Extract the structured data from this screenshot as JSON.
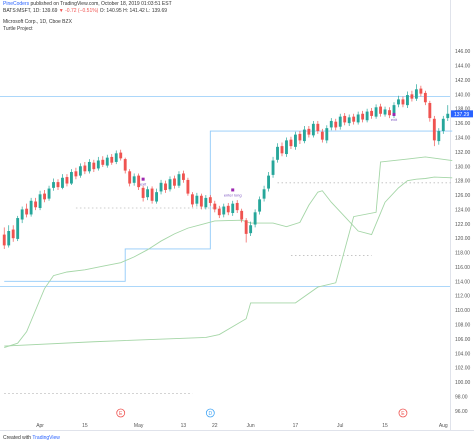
{
  "header": {
    "publisher": "PineCoders",
    "published_text": "published on TradingView.com, October 18, 2019 01:03:51 EST",
    "ohlc_line": "BATS:MSFT, 1D",
    "ohlc_values": "139.69",
    "change": "▼ -0.72 (−0.51%)",
    "ohlc_rest": "O: 140.95 H: 141.42 L: 139.69"
  },
  "legend": {
    "symbol": "Microsoft Corp., 1D, Cboe BZX",
    "study": "Turtle Project"
  },
  "footer": {
    "created": "Created with",
    "brand": "TradingView"
  },
  "colors": {
    "up": "#26a69a",
    "down": "#ef5350",
    "upper_channel": "#90caf9",
    "lower_channel": "#a5d6a7",
    "guide": "#bdbdbd",
    "marker": "#9c27b0",
    "last_price_bg": "#2962ff"
  },
  "chart_data": {
    "type": "candlestick",
    "ylim": [
      95,
      147
    ],
    "y_ticks": [
      96,
      98,
      100,
      102,
      104,
      106,
      108,
      110,
      112,
      114,
      116,
      118,
      120,
      122,
      124,
      126,
      128,
      130,
      132,
      134,
      136,
      138,
      140,
      142,
      144,
      146
    ],
    "last_price": 137.29,
    "x_ticks": [
      {
        "label": "Apr",
        "i": 8
      },
      {
        "label": "15",
        "i": 18
      },
      {
        "label": "May",
        "i": 30
      },
      {
        "label": "13",
        "i": 40
      },
      {
        "label": "22",
        "i": 47
      },
      {
        "label": "Jun",
        "i": 55
      },
      {
        "label": "17",
        "i": 65
      },
      {
        "label": "Jul",
        "i": 75
      },
      {
        "label": "15",
        "i": 85
      },
      {
        "label": "Aug",
        "i": 98
      }
    ],
    "event_markers": [
      {
        "label": "E",
        "i": 26,
        "color": "#ef5350"
      },
      {
        "label": "D",
        "i": 46,
        "color": "#42a5f5"
      },
      {
        "label": "E",
        "i": 89,
        "color": "#ef5350"
      }
    ],
    "horizontal_lines": [
      {
        "y": 139.7,
        "color": "#90caf9"
      },
      {
        "y": 113.3,
        "color": "#90caf9"
      }
    ],
    "annotations": [
      {
        "text": "exit",
        "i": 31,
        "y": 128
      },
      {
        "text": "enter long",
        "i": 51,
        "y": 126.5
      },
      {
        "text": "exit",
        "i": 87,
        "y": 137
      }
    ],
    "candles": [
      [
        120.5,
        119.0,
        121.5,
        118.5
      ],
      [
        119.0,
        121.0,
        121.8,
        118.7
      ],
      [
        121.2,
        120.0,
        121.8,
        119.5
      ],
      [
        119.9,
        122.8,
        123.1,
        119.6
      ],
      [
        122.6,
        124.0,
        124.4,
        122.1
      ],
      [
        124.1,
        123.3,
        124.8,
        122.9
      ],
      [
        123.3,
        125.2,
        125.6,
        123.0
      ],
      [
        125.1,
        124.3,
        125.6,
        123.9
      ],
      [
        124.2,
        126.1,
        126.6,
        123.9
      ],
      [
        126.2,
        125.4,
        126.7,
        125.0
      ],
      [
        125.5,
        126.9,
        127.3,
        125.2
      ],
      [
        127.0,
        127.8,
        128.3,
        126.6
      ],
      [
        127.8,
        127.1,
        128.2,
        126.7
      ],
      [
        127.0,
        128.4,
        128.9,
        126.8
      ],
      [
        128.5,
        127.6,
        128.9,
        127.2
      ],
      [
        127.6,
        129.2,
        129.6,
        127.4
      ],
      [
        129.3,
        128.6,
        129.8,
        128.2
      ],
      [
        128.7,
        130.0,
        130.4,
        128.4
      ],
      [
        130.1,
        129.3,
        130.6,
        128.9
      ],
      [
        129.3,
        130.6,
        131.0,
        129.0
      ],
      [
        130.5,
        129.6,
        130.9,
        129.2
      ],
      [
        129.7,
        130.8,
        131.3,
        129.4
      ],
      [
        130.9,
        130.2,
        131.4,
        129.9
      ],
      [
        130.1,
        131.2,
        131.6,
        129.8
      ],
      [
        131.3,
        130.5,
        131.7,
        130.2
      ],
      [
        130.6,
        131.8,
        132.2,
        130.3
      ],
      [
        131.9,
        131.1,
        132.3,
        130.8
      ],
      [
        131.0,
        129.4,
        131.2,
        129.0
      ],
      [
        129.3,
        127.6,
        129.6,
        127.2
      ],
      [
        127.7,
        128.6,
        129.0,
        127.3
      ],
      [
        128.7,
        127.1,
        129.0,
        126.7
      ],
      [
        127.0,
        125.6,
        127.3,
        125.1
      ],
      [
        125.7,
        126.8,
        127.2,
        125.3
      ],
      [
        126.9,
        125.2,
        127.2,
        124.8
      ],
      [
        125.1,
        126.4,
        126.9,
        124.8
      ],
      [
        126.5,
        127.7,
        128.1,
        126.1
      ],
      [
        127.6,
        126.7,
        128.0,
        126.3
      ],
      [
        126.8,
        128.2,
        128.6,
        126.5
      ],
      [
        128.3,
        127.3,
        128.7,
        126.9
      ],
      [
        127.3,
        128.9,
        129.3,
        127.0
      ],
      [
        129.0,
        128.1,
        129.4,
        127.7
      ],
      [
        128.1,
        126.2,
        128.4,
        125.9
      ],
      [
        126.1,
        124.7,
        126.4,
        124.3
      ],
      [
        124.8,
        125.9,
        126.3,
        124.4
      ],
      [
        125.9,
        124.4,
        126.2,
        124.0
      ],
      [
        124.3,
        125.6,
        126.0,
        124.0
      ],
      [
        125.7,
        124.9,
        126.0,
        124.5
      ],
      [
        124.8,
        124.0,
        125.2,
        123.6
      ],
      [
        124.1,
        123.2,
        124.5,
        122.8
      ],
      [
        123.3,
        124.4,
        124.8,
        122.9
      ],
      [
        124.5,
        123.6,
        124.9,
        123.2
      ],
      [
        123.5,
        124.8,
        125.2,
        123.1
      ],
      [
        124.9,
        123.9,
        125.3,
        123.5
      ],
      [
        123.8,
        122.6,
        124.1,
        122.2
      ],
      [
        122.5,
        120.6,
        122.8,
        119.4
      ],
      [
        120.7,
        121.8,
        122.3,
        120.3
      ],
      [
        121.9,
        123.6,
        124.0,
        121.5
      ],
      [
        123.7,
        125.4,
        125.8,
        123.3
      ],
      [
        125.5,
        126.8,
        127.3,
        125.1
      ],
      [
        126.9,
        128.7,
        129.2,
        126.5
      ],
      [
        128.8,
        130.8,
        131.3,
        128.4
      ],
      [
        130.9,
        132.7,
        133.2,
        130.5
      ],
      [
        132.8,
        131.8,
        133.3,
        131.4
      ],
      [
        131.7,
        133.6,
        134.0,
        131.3
      ],
      [
        133.7,
        132.8,
        134.1,
        132.4
      ],
      [
        132.7,
        134.4,
        134.8,
        132.3
      ],
      [
        134.5,
        133.6,
        134.9,
        133.1
      ],
      [
        133.5,
        135.1,
        135.6,
        133.2
      ],
      [
        135.2,
        134.4,
        135.6,
        134.0
      ],
      [
        134.3,
        135.9,
        136.3,
        134.0
      ],
      [
        135.9,
        134.9,
        136.3,
        134.5
      ],
      [
        134.8,
        133.7,
        135.2,
        133.3
      ],
      [
        133.6,
        135.3,
        135.7,
        133.2
      ],
      [
        135.4,
        136.3,
        136.7,
        135.0
      ],
      [
        136.2,
        135.4,
        136.6,
        135.0
      ],
      [
        135.5,
        136.9,
        137.3,
        135.1
      ],
      [
        137.0,
        136.1,
        137.4,
        135.7
      ],
      [
        136.0,
        136.8,
        137.2,
        135.6
      ],
      [
        136.9,
        136.2,
        137.3,
        135.8
      ],
      [
        136.1,
        137.2,
        137.6,
        135.8
      ],
      [
        137.3,
        136.5,
        137.7,
        136.1
      ],
      [
        136.4,
        137.6,
        138.0,
        136.1
      ],
      [
        137.7,
        137.0,
        138.1,
        136.6
      ],
      [
        136.9,
        138.2,
        138.6,
        136.6
      ],
      [
        138.3,
        137.3,
        138.7,
        136.9
      ],
      [
        137.2,
        137.9,
        138.3,
        136.9
      ],
      [
        137.8,
        137.1,
        138.2,
        136.7
      ],
      [
        137.0,
        138.5,
        138.9,
        136.7
      ],
      [
        138.6,
        139.3,
        139.8,
        138.2
      ],
      [
        139.3,
        138.6,
        139.7,
        138.2
      ],
      [
        138.5,
        139.9,
        140.4,
        138.1
      ],
      [
        140.0,
        139.4,
        140.5,
        139.0
      ],
      [
        139.4,
        140.7,
        141.4,
        139.1
      ],
      [
        140.8,
        140.1,
        141.2,
        139.7
      ],
      [
        140.2,
        138.9,
        140.5,
        138.5
      ],
      [
        138.8,
        136.7,
        139.1,
        136.2
      ],
      [
        136.6,
        133.6,
        137.0,
        132.8
      ],
      [
        133.5,
        134.9,
        135.3,
        133.0
      ],
      [
        134.9,
        136.6,
        137.0,
        134.5
      ],
      [
        136.7,
        137.3,
        138.5,
        136.3
      ]
    ],
    "upper_channel": [
      [
        0,
        114.0
      ],
      [
        27,
        114.0
      ],
      [
        27,
        118.5
      ],
      [
        46,
        118.5
      ],
      [
        46,
        134.9
      ],
      [
        55,
        134.9
      ],
      [
        64,
        134.9
      ],
      [
        74,
        134.9
      ],
      [
        85,
        134.9
      ],
      [
        90,
        134.9
      ],
      [
        94,
        134.9
      ],
      [
        100,
        134.9
      ]
    ],
    "lower_channel": [
      [
        0,
        104.8
      ],
      [
        3,
        105.4
      ],
      [
        5,
        107.0
      ],
      [
        7,
        110.0
      ],
      [
        9,
        113.0
      ],
      [
        11,
        114.8
      ],
      [
        14,
        115.3
      ],
      [
        18,
        115.6
      ],
      [
        22,
        116.1
      ],
      [
        26,
        116.6
      ],
      [
        29,
        117.4
      ],
      [
        32,
        118.4
      ],
      [
        35,
        119.6
      ],
      [
        38,
        120.6
      ],
      [
        41,
        121.4
      ],
      [
        44,
        121.9
      ],
      [
        47,
        122.4
      ],
      [
        53,
        122.5
      ],
      [
        55,
        122.1
      ],
      [
        60,
        122.1
      ],
      [
        63,
        121.6
      ],
      [
        66,
        122.2
      ],
      [
        68,
        124.6
      ],
      [
        70,
        126.4
      ],
      [
        71,
        126.6
      ],
      [
        73,
        125.0
      ],
      [
        76,
        123.0
      ],
      [
        79,
        121.0
      ],
      [
        82,
        120.5
      ],
      [
        85,
        125.0
      ],
      [
        88,
        127.0
      ],
      [
        90,
        128.0
      ],
      [
        92,
        128.2
      ],
      [
        94,
        128.3
      ],
      [
        96,
        128.5
      ],
      [
        100,
        128.4
      ]
    ],
    "lower_channel_line": [
      [
        0,
        105.0
      ],
      [
        20,
        105.6
      ],
      [
        45,
        106.2
      ],
      [
        48,
        106.6
      ],
      [
        54,
        108.8
      ],
      [
        55,
        111.0
      ],
      [
        65,
        111.0
      ],
      [
        70,
        113.2
      ],
      [
        74,
        113.8
      ],
      [
        78,
        123.0
      ],
      [
        83,
        123.6
      ],
      [
        84,
        130.6
      ],
      [
        90,
        131.0
      ],
      [
        94,
        131.3
      ],
      [
        100,
        130.8
      ]
    ],
    "dotted_levels": [
      {
        "y": 124.2,
        "from": 16,
        "to": 52
      },
      {
        "y": 117.6,
        "from": 64,
        "to": 82
      },
      {
        "y": 98.4,
        "from": 0,
        "to": 42
      },
      {
        "y": 127.7,
        "from": 61,
        "to": 100
      }
    ]
  }
}
